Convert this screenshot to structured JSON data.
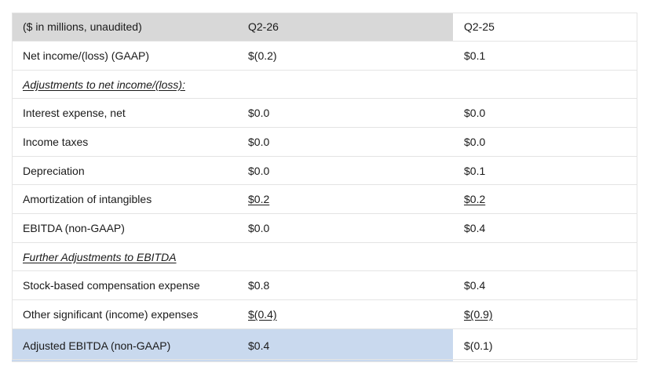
{
  "table": {
    "header": {
      "label": "($ in millions, unaudited)",
      "q2_26": "Q2-26",
      "q2_25": "Q2-25"
    },
    "rows": [
      {
        "label": "Net income/(loss) (GAAP)",
        "q2_26": "$(0.2)",
        "q2_25": "$0.1"
      },
      {
        "label": "Adjustments to net income/(loss):",
        "q2_26": "",
        "q2_25": ""
      },
      {
        "label": "Interest expense, net",
        "q2_26": "$0.0",
        "q2_25": "$0.0"
      },
      {
        "label": "Income taxes",
        "q2_26": "$0.0",
        "q2_25": "$0.0"
      },
      {
        "label": "Depreciation",
        "q2_26": "$0.0",
        "q2_25": "$0.1"
      },
      {
        "label": "Amortization of intangibles",
        "q2_26": "$0.2",
        "q2_25": "$0.2"
      },
      {
        "label": "EBITDA (non-GAAP)",
        "q2_26": "$0.0",
        "q2_25": "$0.4"
      },
      {
        "label": "Further Adjustments to EBITDA",
        "q2_26": "",
        "q2_25": ""
      },
      {
        "label": "Stock-based compensation expense",
        "q2_26": "$0.8",
        "q2_25": "$0.4"
      },
      {
        "label": "Other significant (income) expenses",
        "q2_26": "$(0.4)",
        "q2_25": "$(0.9)"
      },
      {
        "label": "Adjusted EBITDA (non-GAAP)",
        "q2_26": "$0.4",
        "q2_25": "$(0.1)"
      }
    ]
  },
  "colors": {
    "header_bg": "#d8d8d8",
    "highlight_bg": "#c9d9ee",
    "rule": "#e4e4e4"
  }
}
